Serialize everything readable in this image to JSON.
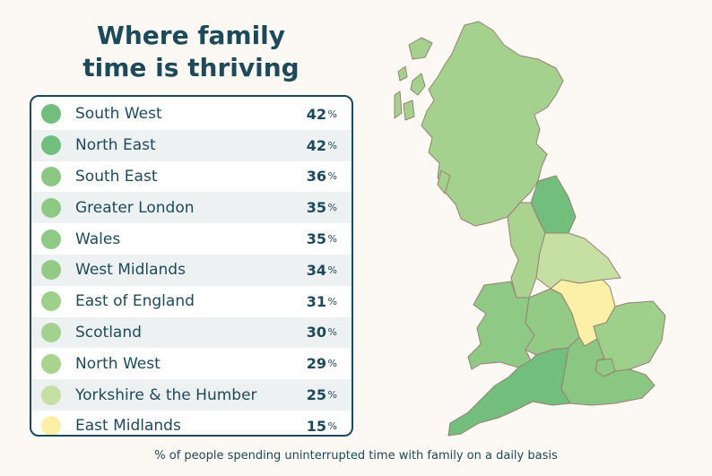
{
  "title_line1": "Where family",
  "title_line2": "time is thriving",
  "caption": "% of people spending uninterrupted time with family on a daily basis",
  "chart_data": {
    "type": "table",
    "unit": "%",
    "rows": [
      {
        "region": "South West",
        "value": 42,
        "color": "#72be7c"
      },
      {
        "region": "North East",
        "value": 42,
        "color": "#72be7c"
      },
      {
        "region": "South East",
        "value": 36,
        "color": "#8ac783"
      },
      {
        "region": "Greater London",
        "value": 35,
        "color": "#8ec985"
      },
      {
        "region": "Wales",
        "value": 35,
        "color": "#8ec985"
      },
      {
        "region": "West Midlands",
        "value": 34,
        "color": "#92ca86"
      },
      {
        "region": "East of England",
        "value": 31,
        "color": "#9ecf8b"
      },
      {
        "region": "Scotland",
        "value": 30,
        "color": "#a4d18d"
      },
      {
        "region": "North West",
        "value": 29,
        "color": "#a9d38f"
      },
      {
        "region": "Yorkshire & the Humber",
        "value": 25,
        "color": "#c6e0a4"
      },
      {
        "region": "East Midlands",
        "value": 15,
        "color": "#fcf0a6"
      }
    ]
  }
}
